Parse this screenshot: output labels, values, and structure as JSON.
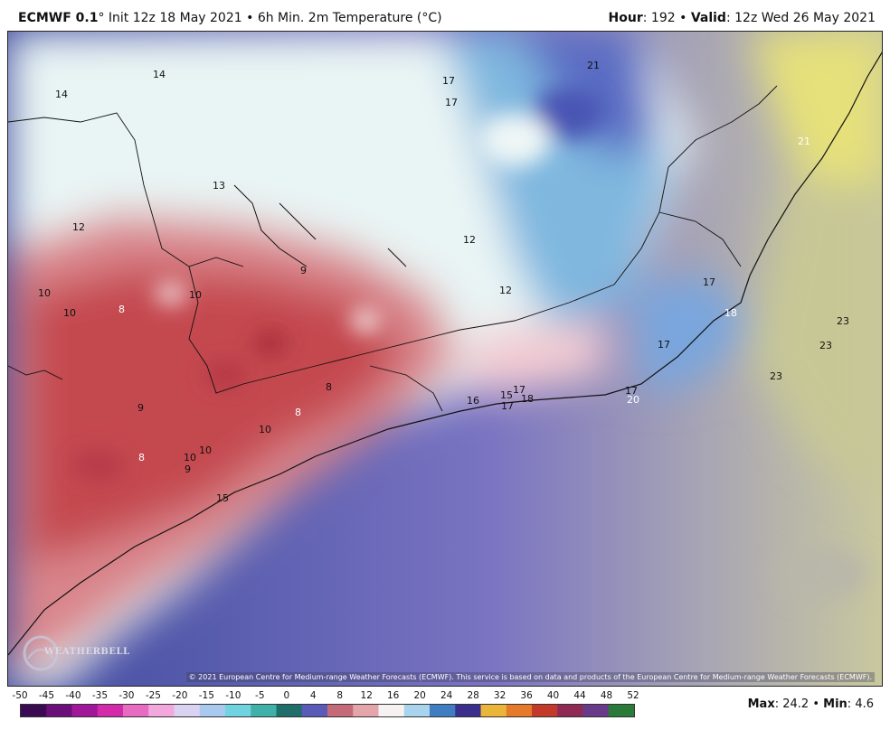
{
  "header": {
    "model": "ECMWF 0.1",
    "degree": "°",
    "init_text": "Init 12z 18 May 2021",
    "bullet": "•",
    "product": "6h Min. 2m Temperature (°C)",
    "hour_label": "Hour",
    "hour_value": "192",
    "valid_label": "Valid",
    "valid_value": "12z Wed 26 May 2021"
  },
  "copyright": "© 2021 European Centre for Medium-range Weather Forecasts (ECMWF). This service is based on data and products of the European Centre for Medium-range Weather Forecasts (ECMWF).",
  "logo_text": "WEATHERBELL",
  "legend": {
    "ticks": [
      "-50",
      "-45",
      "-40",
      "-35",
      "-30",
      "-25",
      "-20",
      "-15",
      "-10",
      "-5",
      "0",
      "4",
      "8",
      "12",
      "16",
      "20",
      "24",
      "28",
      "32",
      "36",
      "40",
      "44",
      "48",
      "52"
    ],
    "colors": [
      "#3a0a52",
      "#6b0f7a",
      "#a0179a",
      "#d22aa8",
      "#e86bc2",
      "#f2a8dc",
      "#d9d2f0",
      "#a9c9ee",
      "#6fd3e0",
      "#3fb1a8",
      "#1f6e6a",
      "#5a5ab8",
      "#c46a78",
      "#e3a4aa",
      "#f7f2f2",
      "#a9d4ee",
      "#3f7dc2",
      "#3a2f8c",
      "#e9b63a",
      "#e57a2a",
      "#c43a2a",
      "#8e2a54",
      "#6a3a8a",
      "#2a7a3a"
    ]
  },
  "max_label": "Max",
  "max_value": "24.2",
  "min_label": "Min",
  "min_value": "4.6",
  "map_labels": [
    {
      "text": "14",
      "color": "#111"
    },
    {
      "text": "14",
      "color": "#111"
    },
    {
      "text": "17",
      "color": "#111"
    },
    {
      "text": "17",
      "color": "#111"
    },
    {
      "text": "21",
      "color": "#111"
    },
    {
      "text": "13",
      "color": "#111"
    },
    {
      "text": "12",
      "color": "#111"
    },
    {
      "text": "12",
      "color": "#111"
    },
    {
      "text": "9",
      "color": "#111"
    },
    {
      "text": "10",
      "color": "#111"
    },
    {
      "text": "10",
      "color": "#111"
    },
    {
      "text": "8",
      "color": "#ffffff"
    },
    {
      "text": "10",
      "color": "#111"
    },
    {
      "text": "12",
      "color": "#111"
    },
    {
      "text": "17",
      "color": "#111"
    },
    {
      "text": "18",
      "color": "#ffffff"
    },
    {
      "text": "17",
      "color": "#111"
    },
    {
      "text": "23",
      "color": "#111"
    },
    {
      "text": "23",
      "color": "#111"
    },
    {
      "text": "23",
      "color": "#111"
    },
    {
      "text": "8",
      "color": "#111"
    },
    {
      "text": "9",
      "color": "#111"
    },
    {
      "text": "8",
      "color": "#ffffff"
    },
    {
      "text": "10",
      "color": "#111"
    },
    {
      "text": "16",
      "color": "#111"
    },
    {
      "text": "15",
      "color": "#111"
    },
    {
      "text": "17",
      "color": "#111"
    },
    {
      "text": "18",
      "color": "#111"
    },
    {
      "text": "17",
      "color": "#111"
    },
    {
      "text": "17",
      "color": "#111"
    },
    {
      "text": "20",
      "color": "#ffffff"
    },
    {
      "text": "8",
      "color": "#ffffff"
    },
    {
      "text": "10",
      "color": "#111"
    },
    {
      "text": "10",
      "color": "#111"
    },
    {
      "text": "9",
      "color": "#111"
    },
    {
      "text": "15",
      "color": "#111"
    },
    {
      "text": "21",
      "color": "#ffffff"
    }
  ]
}
